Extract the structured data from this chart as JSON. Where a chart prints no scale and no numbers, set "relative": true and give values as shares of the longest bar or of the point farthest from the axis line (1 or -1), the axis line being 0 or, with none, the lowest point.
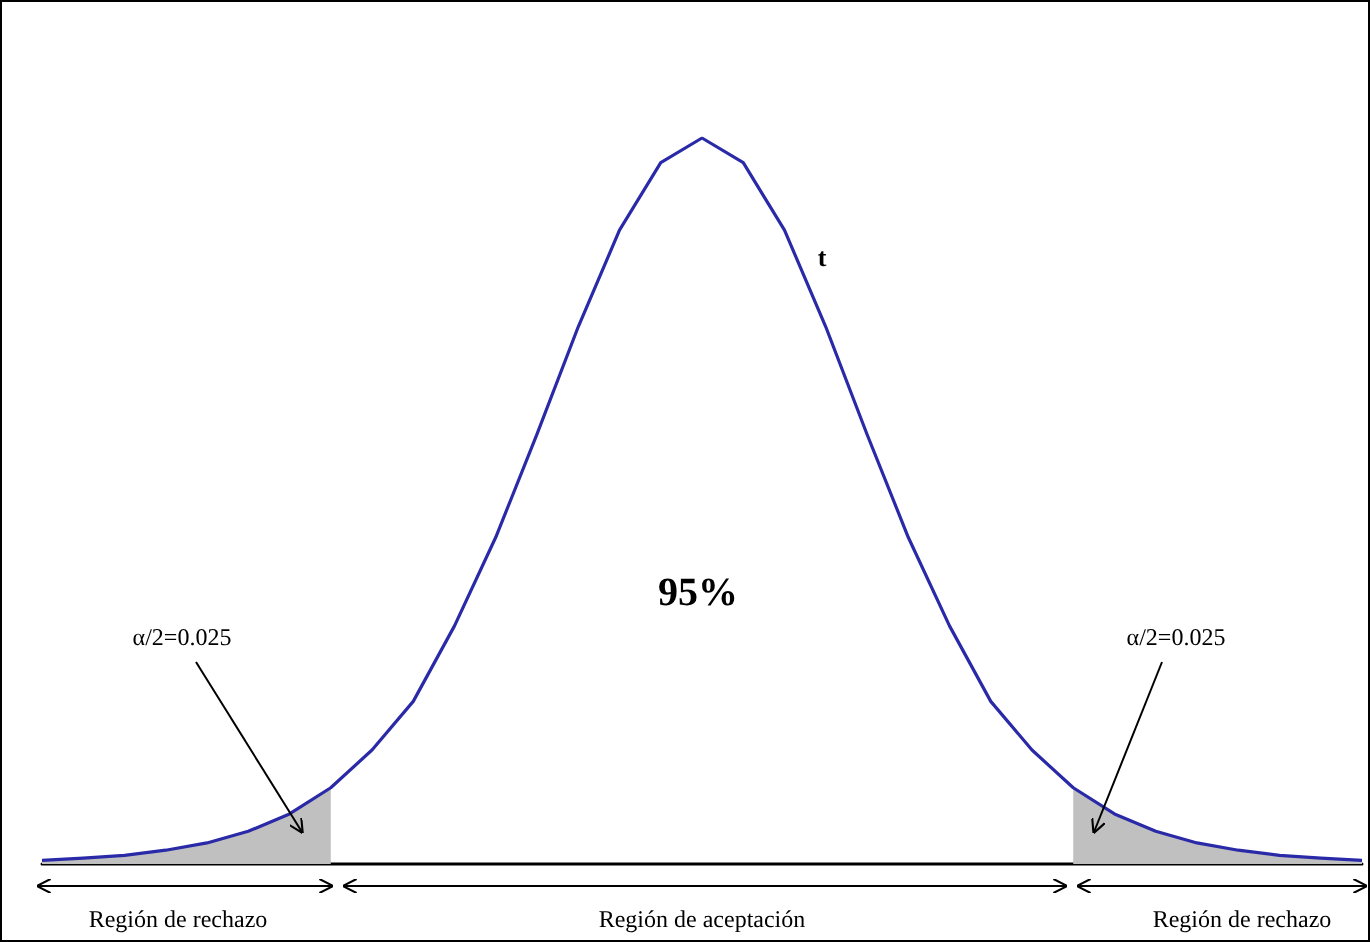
{
  "chart_data": {
    "type": "line",
    "relative": true,
    "marker": "none",
    "categories": [
      null,
      null,
      null,
      null,
      null,
      null,
      null,
      null,
      null,
      null,
      null,
      null,
      null,
      null,
      null,
      null,
      null,
      null,
      null,
      null,
      null,
      null,
      null,
      null,
      null,
      null,
      null,
      null,
      null,
      null,
      null,
      null,
      null
    ],
    "series": [
      {
        "type": "area",
        "color": "#c0c0c0",
        "values": [
          0.005,
          0.008,
          0.012,
          0.019,
          0.029,
          0.045,
          0.069,
          0.105,
          null,
          null,
          null,
          null,
          null,
          null,
          null,
          null,
          null,
          null,
          null,
          null,
          null,
          null,
          null,
          null,
          null,
          null,
          null,
          null,
          null,
          null,
          null,
          null,
          null
        ]
      },
      {
        "type": "area",
        "color": "#c0c0c0",
        "values": [
          null,
          null,
          null,
          null,
          null,
          null,
          null,
          null,
          null,
          null,
          null,
          null,
          null,
          null,
          null,
          null,
          null,
          null,
          null,
          null,
          null,
          null,
          null,
          null,
          null,
          0.105,
          0.069,
          0.045,
          0.029,
          0.019,
          0.012,
          0.008,
          0.005
        ]
      },
      {
        "color": "#2a2aa8",
        "values": [
          0.005,
          0.008,
          0.012,
          0.019,
          0.029,
          0.045,
          0.069,
          0.105,
          0.157,
          0.224,
          0.328,
          0.45,
          0.592,
          0.74,
          0.873,
          0.966,
          1,
          0.966,
          0.873,
          0.74,
          0.592,
          0.45,
          0.328,
          0.224,
          0.157,
          0.105,
          0.069,
          0.045,
          0.029,
          0.019,
          0.012,
          0.008,
          0.005
        ]
      }
    ],
    "annotations": [
      "t",
      "95%",
      "α/2=0.025",
      "α/2=0.025",
      "Región de rechazo",
      "Región de aceptación",
      "Región de rechazo"
    ]
  }
}
